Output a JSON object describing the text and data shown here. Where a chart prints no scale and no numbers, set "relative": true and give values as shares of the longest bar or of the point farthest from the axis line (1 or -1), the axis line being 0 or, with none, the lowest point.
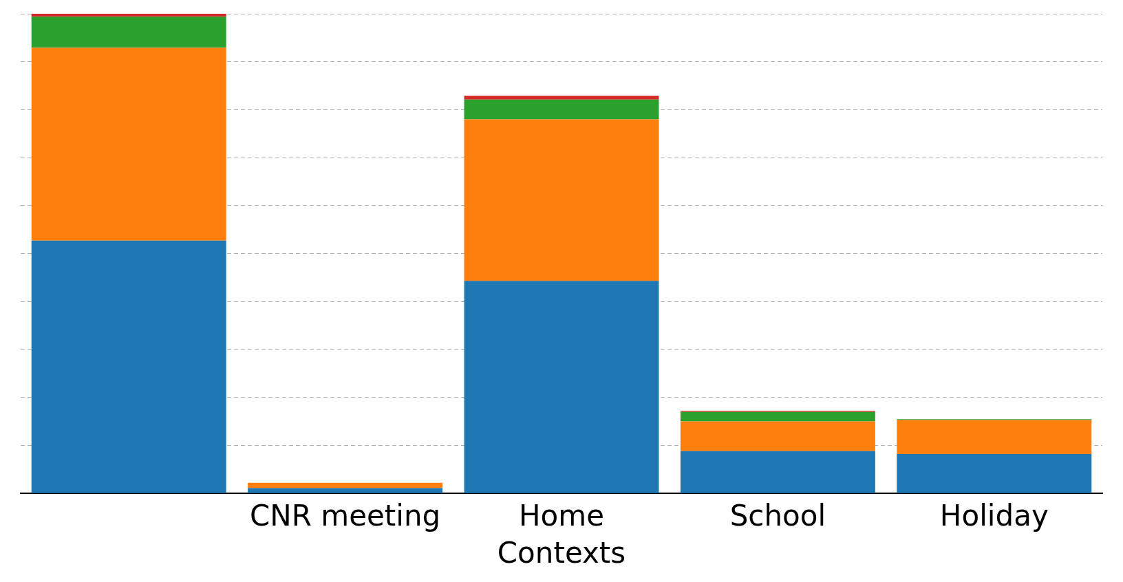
{
  "chart_data": {
    "type": "bar",
    "xlabel": "Contexts",
    "categories": [
      null,
      "CNR meeting",
      "Home",
      "School",
      "Holiday"
    ],
    "stacked": true,
    "relative": true,
    "grid": "y",
    "legend": false,
    "series": [
      {
        "color": "#1f77b4",
        "values": [
          0.527,
          0.011,
          0.443,
          0.088,
          0.082
        ]
      },
      {
        "color": "#ff7f0e",
        "values": [
          0.402,
          0.011,
          0.337,
          0.062,
          0.071
        ]
      },
      {
        "color": "#2ca02c",
        "values": [
          0.065,
          null,
          0.041,
          0.02,
          0.002
        ]
      },
      {
        "color": "#d62728",
        "values": [
          0.006,
          null,
          0.008,
          0.002,
          0
        ]
      }
    ]
  }
}
